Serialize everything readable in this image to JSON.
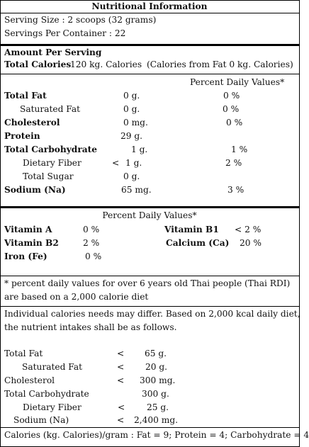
{
  "title": "Nutritional Information",
  "serving_size": "Serving Size : 2 scoops (32 grams)",
  "servings_per_container": "Servings Per Container : 22",
  "amount_per_serving": "Amount Per Serving",
  "total_calories_label": "Total Calories",
  "total_calories_value": "120 kg. Calories",
  "calories_from_fat": "(Calories from Fat 0 kg. Calories)",
  "pdv_header": "Percent Daily Values*",
  "nutrients": [
    {
      "name": "Total Fat",
      "prefix": "",
      "amount": "0 g.",
      "dv": "0 %"
    },
    {
      "name": "Saturated Fat",
      "prefix": "",
      "amount": "0 g.",
      "dv": "0 %"
    },
    {
      "name": "Cholesterol",
      "prefix": "",
      "amount": "0 mg.",
      "dv": "0 %"
    },
    {
      "name": "Protein",
      "prefix": "",
      "amount": "29 g.",
      "dv": ""
    },
    {
      "name": "Total Carbohydrate",
      "prefix": "",
      "amount": "1 g.",
      "dv": "1 %"
    },
    {
      "name": "Dietary Fiber",
      "prefix": "<",
      "amount": "1 g.",
      "dv": "2 %"
    },
    {
      "name": "Total Sugar",
      "prefix": "",
      "amount": "0 g.",
      "dv": ""
    },
    {
      "name": "Sodium (Na)",
      "prefix": "",
      "amount": "65 mg.",
      "dv": "3 %"
    }
  ],
  "vitamins_header": "Percent Daily Values*",
  "vitamins": [
    {
      "name": "Vitamin A",
      "value": "0 %"
    },
    {
      "name": "Vitamin B2",
      "value": "2 %"
    },
    {
      "name": "Iron (Fe)",
      "value": "0 %"
    },
    {
      "name": "Vitamin B1",
      "value": "< 2 %"
    },
    {
      "name": "Calcium (Ca)",
      "value": "20 %"
    }
  ],
  "footnote_1": "* percent daily values for over 6 years old Thai people (Thai RDI)",
  "footnote_2": "are based on a 2,000 calorie diet",
  "intake_note_1": "Individual calories needs may differ. Based on 2,000 kcal daily diet,",
  "intake_note_2": "the nutrient intakes shall be as follows.",
  "limits": [
    {
      "name": "Total Fat",
      "op": "<",
      "amount": "65 g."
    },
    {
      "name": "Saturated Fat",
      "op": "<",
      "amount": "20 g."
    },
    {
      "name": "Cholesterol",
      "op": "<",
      "amount": "300 mg."
    },
    {
      "name": "Total Carbohydrate",
      "op": "",
      "amount": "300 g."
    },
    {
      "name": "Dietary Fiber",
      "op": "<",
      "amount": "25 g."
    },
    {
      "name": "Sodium (Na)",
      "op": "<",
      "amount": "2,400 mg."
    }
  ],
  "calories_per_gram": "Calories (kg. Calories)/gram : Fat = 9; Protein = 4; Carbohydrate = 4"
}
